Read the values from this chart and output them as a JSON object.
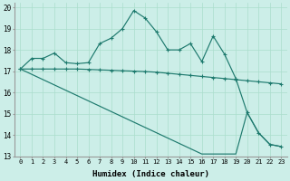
{
  "xlabel": "Humidex (Indice chaleur)",
  "bg_color": "#cceee8",
  "line_color": "#1e7a6e",
  "grid_color": "#aaddcc",
  "xlim": [
    -0.5,
    23.5
  ],
  "ylim": [
    13,
    20.2
  ],
  "yticks": [
    13,
    14,
    15,
    16,
    17,
    18,
    19,
    20
  ],
  "xticks": [
    0,
    1,
    2,
    3,
    4,
    5,
    6,
    7,
    8,
    9,
    10,
    11,
    12,
    13,
    14,
    15,
    16,
    17,
    18,
    19,
    20,
    21,
    22,
    23
  ],
  "line1_x": [
    0,
    1,
    2,
    3,
    4,
    5,
    6,
    7,
    8,
    9,
    10,
    11,
    12,
    13,
    14,
    15,
    16,
    17,
    18,
    19,
    20,
    21,
    22,
    23
  ],
  "line1_y": [
    17.1,
    17.6,
    17.6,
    17.85,
    17.4,
    17.35,
    17.4,
    18.3,
    18.55,
    19.0,
    19.85,
    19.5,
    18.85,
    18.0,
    18.0,
    18.3,
    17.45,
    18.65,
    17.8,
    16.65,
    15.05,
    14.1,
    13.55,
    13.45
  ],
  "line2_x": [
    0,
    1,
    2,
    3,
    4,
    5,
    6,
    7,
    8,
    9,
    10,
    11,
    12,
    13,
    14,
    15,
    16,
    17,
    18,
    19,
    20,
    21,
    22,
    23
  ],
  "line2_y": [
    17.1,
    17.1,
    17.1,
    17.1,
    17.1,
    17.1,
    17.08,
    17.06,
    17.04,
    17.02,
    17.0,
    16.98,
    16.95,
    16.9,
    16.85,
    16.8,
    16.75,
    16.7,
    16.65,
    16.6,
    16.55,
    16.5,
    16.45,
    16.4
  ],
  "line3_x": [
    0,
    1,
    2,
    3,
    4,
    5,
    6,
    7,
    8,
    9,
    10,
    11,
    12,
    13,
    14,
    15,
    16,
    17,
    18,
    19,
    20,
    21,
    22,
    23
  ],
  "line3_y": [
    17.1,
    16.85,
    16.6,
    16.35,
    16.1,
    15.85,
    15.6,
    15.35,
    15.1,
    14.85,
    14.6,
    14.35,
    14.1,
    13.85,
    13.6,
    13.35,
    13.1,
    13.1,
    13.1,
    13.1,
    15.05,
    14.1,
    13.55,
    13.45
  ]
}
